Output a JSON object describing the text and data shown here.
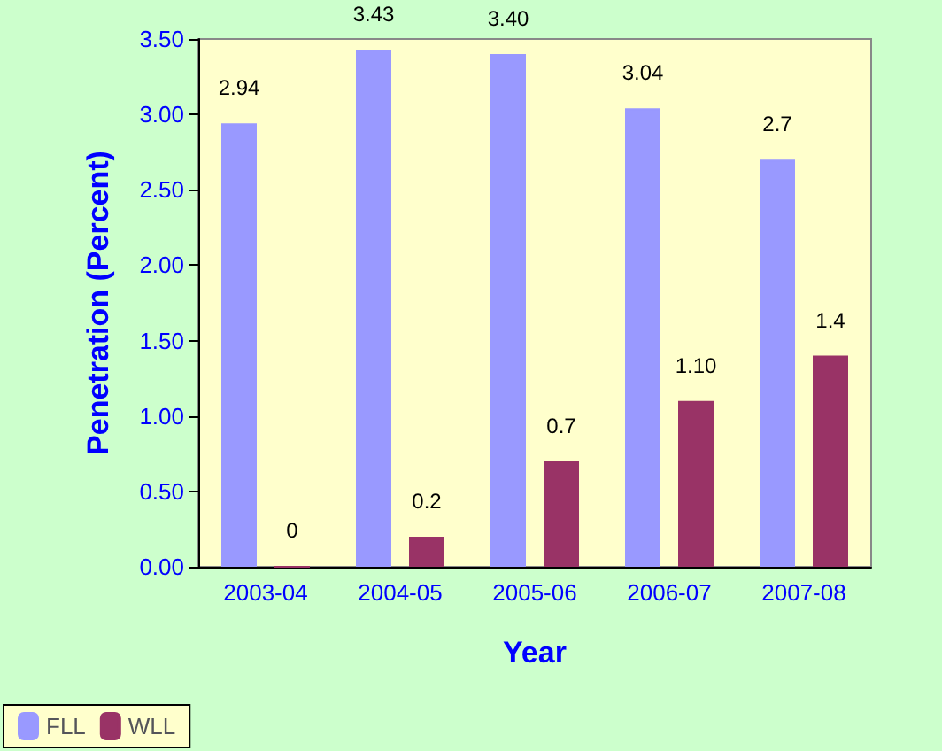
{
  "chart_data": {
    "type": "bar",
    "xlabel": "Year",
    "ylabel": "Penetration (Percent)",
    "categories": [
      "2003-04",
      "2004-05",
      "2005-06",
      "2006-07",
      "2007-08"
    ],
    "series": [
      {
        "name": "FLL",
        "color": "#9999ff",
        "values": [
          2.94,
          3.43,
          3.4,
          3.04,
          2.7
        ],
        "value_labels": [
          "2.94",
          "3.43",
          "3.40",
          "3.04",
          "2.7"
        ]
      },
      {
        "name": "WLL",
        "color": "#993366",
        "values": [
          0,
          0.2,
          0.7,
          1.1,
          1.4
        ],
        "value_labels": [
          "0",
          "0.2",
          "0.7",
          "1.10",
          "1.4"
        ]
      }
    ],
    "ylim": [
      0,
      3.5
    ],
    "yticks": [
      {
        "value": 0,
        "label": "0.00"
      },
      {
        "value": 0.5,
        "label": "0.50"
      },
      {
        "value": 1,
        "label": "1.00"
      },
      {
        "value": 1.5,
        "label": "1.50"
      },
      {
        "value": 2,
        "label": "2.00"
      },
      {
        "value": 2.5,
        "label": "2.50"
      },
      {
        "value": 3,
        "label": "3.00"
      },
      {
        "value": 3.5,
        "label": "3.50"
      }
    ],
    "grid": false,
    "legend": "bottom left"
  }
}
